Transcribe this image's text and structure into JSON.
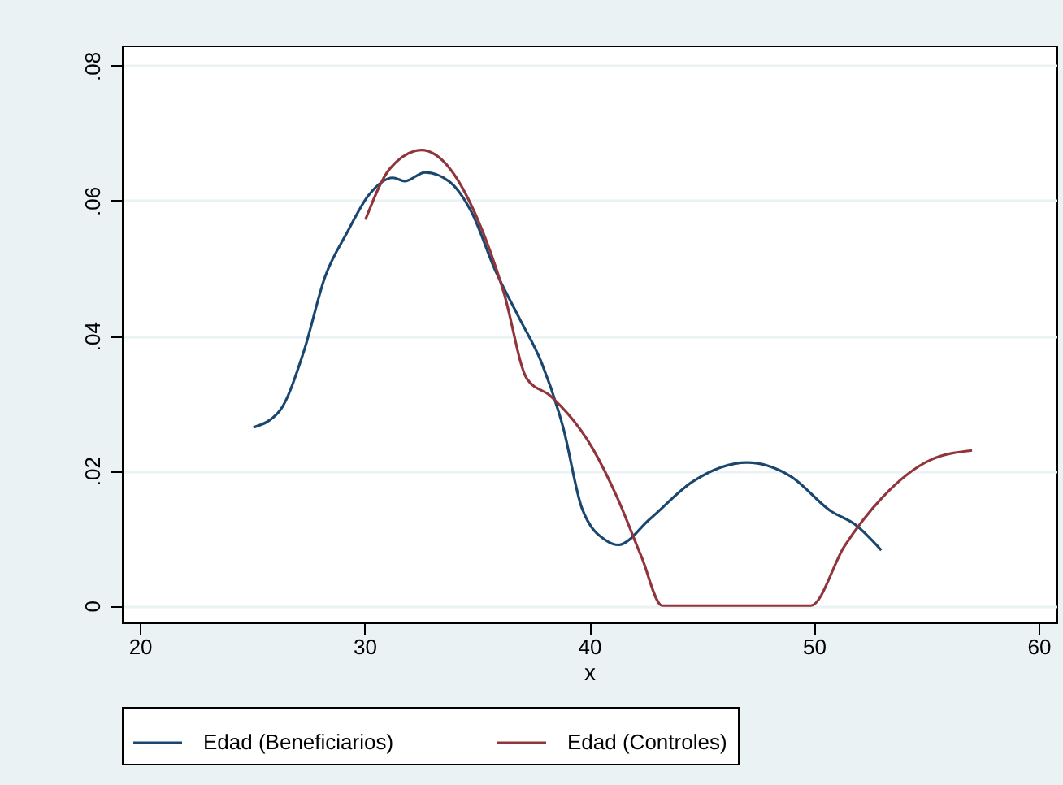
{
  "chart_data": {
    "type": "line",
    "xlabel": "x",
    "xlim": [
      19.2,
      60.8
    ],
    "ylim": [
      -0.0025,
      0.083
    ],
    "xticks": [
      20,
      30,
      40,
      50,
      60
    ],
    "yticks": [
      {
        "value": 0,
        "label": "0"
      },
      {
        "value": 0.02,
        "label": ".02"
      },
      {
        "value": 0.04,
        "label": ".04"
      },
      {
        "value": 0.06,
        "label": ".06"
      },
      {
        "value": 0.08,
        "label": ".08"
      }
    ],
    "grid": "y",
    "legend": "bottom",
    "line_style": "solid",
    "marker": "none",
    "series": [
      {
        "name": "Edad (Beneficiarios)",
        "color": "#1a476f",
        "x": [
          25.05,
          26.25,
          27.29,
          28.25,
          29.21,
          30.18,
          31.26,
          31.79,
          32.7,
          33.79,
          34.75,
          35.83,
          36.92,
          37.88,
          38.84,
          39.68,
          40.77,
          41.3,
          42.69,
          44.62,
          47.03,
          48.95,
          50.76,
          51.84,
          53.0
        ],
        "values": [
          0.0264,
          0.029,
          0.0376,
          0.0488,
          0.0552,
          0.0608,
          0.0634,
          0.0629,
          0.0642,
          0.0628,
          0.0584,
          0.0496,
          0.0424,
          0.036,
          0.0264,
          0.0144,
          0.0096,
          0.009,
          0.0128,
          0.0184,
          0.0212,
          0.0192,
          0.014,
          0.012,
          0.0082
        ]
      },
      {
        "name": "Edad (Controles)",
        "color": "#90353b",
        "x": [
          30.04,
          31.14,
          32.53,
          33.79,
          34.99,
          36.2,
          37.23,
          38.3,
          40.17,
          41.25,
          42.33,
          43.25,
          49.86,
          51.36,
          53.04,
          55.2,
          57.04
        ],
        "values": [
          0.0572,
          0.0648,
          0.0675,
          0.0648,
          0.0576,
          0.0464,
          0.0336,
          0.031,
          0.0232,
          0.016,
          0.0072,
          0,
          0,
          0.0088,
          0.016,
          0.0216,
          0.023
        ]
      }
    ]
  }
}
